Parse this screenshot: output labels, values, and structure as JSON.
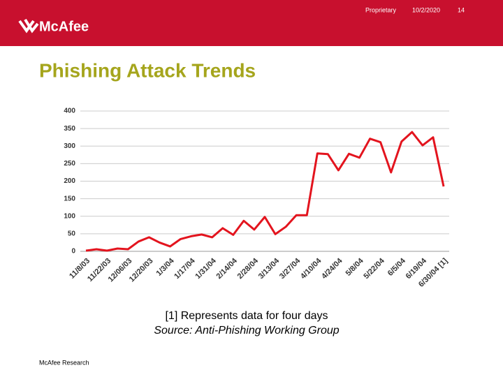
{
  "header": {
    "logo": "McAfee",
    "proprietary": "Proprietary",
    "date": "10/2/2020",
    "page": "14"
  },
  "title": "Phishing Attack Trends",
  "chart_data": {
    "type": "line",
    "categories": [
      "11/8/03",
      null,
      "11/22/03",
      null,
      "12/06/03",
      null,
      "12/20/03",
      null,
      "1/3/04",
      null,
      "1/17/04",
      null,
      "1/31/04",
      null,
      "2/14/04",
      null,
      "2/28/04",
      null,
      "3/13/04",
      null,
      "3/27/04",
      null,
      "4/10/04",
      null,
      "4/24/04",
      null,
      "5/8/04",
      null,
      "5/22/04",
      null,
      "6/5/04",
      null,
      "6/19/04",
      null,
      "6/30/04 [1]"
    ],
    "series": [
      {
        "color": "#e3141e",
        "values": [
          2,
          6,
          2,
          8,
          6,
          28,
          40,
          25,
          14,
          35,
          43,
          48,
          40,
          66,
          47,
          87,
          62,
          98,
          49,
          70,
          103,
          103,
          279,
          277,
          231,
          278,
          267,
          321,
          311,
          225,
          313,
          340,
          302,
          325,
          185
        ]
      }
    ],
    "ylim": [
      0,
      400
    ],
    "yticks": [
      0,
      50,
      100,
      150,
      200,
      250,
      300,
      350,
      400
    ],
    "grid": true
  },
  "footnotes": [
    "[1] Represents data for four days",
    "Source:  Anti-Phishing Working Group"
  ],
  "footer": "McAfee Research"
}
